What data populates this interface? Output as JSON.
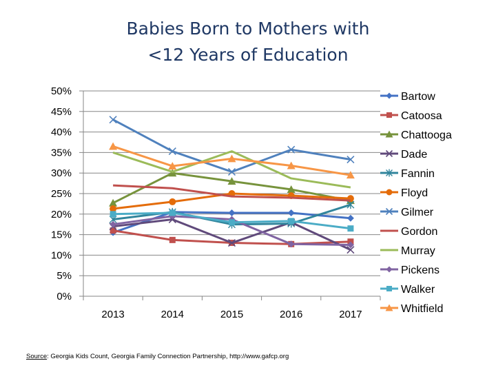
{
  "chart_data": {
    "type": "line",
    "title_lines": [
      "Babies Born to Mothers with",
      "<12 Years of Education"
    ],
    "x": [
      "2013",
      "2014",
      "2015",
      "2016",
      "2017"
    ],
    "y_ticks": [
      "0%",
      "5%",
      "10%",
      "15%",
      "20%",
      "25%",
      "30%",
      "35%",
      "40%",
      "45%",
      "50%"
    ],
    "ylim": [
      0,
      50
    ],
    "grid": true,
    "legend_position": "right",
    "series": [
      {
        "name": "Bartow",
        "color": "#4472c4",
        "marker": "diamond",
        "values": [
          15.5,
          20.5,
          20.3,
          20.3,
          19.0
        ]
      },
      {
        "name": "Catoosa",
        "color": "#c0504d",
        "marker": "square",
        "values": [
          16.0,
          13.7,
          13.0,
          12.7,
          13.3
        ]
      },
      {
        "name": "Chattooga",
        "color": "#77933c",
        "marker": "triangle",
        "values": [
          22.7,
          30.0,
          28.0,
          26.0,
          23.3
        ]
      },
      {
        "name": "Dade",
        "color": "#604a7b",
        "marker": "x",
        "values": [
          17.0,
          18.7,
          13.0,
          18.0,
          11.3
        ]
      },
      {
        "name": "Fannin",
        "color": "#31859c",
        "marker": "star",
        "values": [
          18.7,
          20.5,
          17.5,
          17.7,
          22.3
        ]
      },
      {
        "name": "Floyd",
        "color": "#e46c0a",
        "marker": "circle",
        "values": [
          21.3,
          23.0,
          25.0,
          24.5,
          23.8
        ]
      },
      {
        "name": "Gilmer",
        "color": "#4f81bd",
        "marker": "x",
        "values": [
          43.0,
          35.3,
          30.3,
          35.7,
          33.3
        ]
      },
      {
        "name": "Gordon",
        "color": "#c0504d",
        "marker": "none",
        "values": [
          27.0,
          26.3,
          24.3,
          24.0,
          23.3
        ]
      },
      {
        "name": "Murray",
        "color": "#9bbb59",
        "marker": "none",
        "values": [
          35.0,
          30.3,
          35.3,
          28.7,
          26.5
        ]
      },
      {
        "name": "Pickens",
        "color": "#8064a2",
        "marker": "diamond",
        "values": [
          17.5,
          19.5,
          18.7,
          12.7,
          12.5
        ]
      },
      {
        "name": "Walker",
        "color": "#4bacc6",
        "marker": "square",
        "values": [
          20.0,
          20.3,
          18.0,
          18.3,
          16.5
        ]
      },
      {
        "name": "Whitfield",
        "color": "#f79646",
        "marker": "triangle",
        "values": [
          36.5,
          31.7,
          33.5,
          31.8,
          29.5
        ]
      }
    ]
  },
  "source": {
    "label": "Source",
    "text": ": Georgia Kids Count, Georgia Family Connection Partnership, http://www.gafcp.org"
  }
}
